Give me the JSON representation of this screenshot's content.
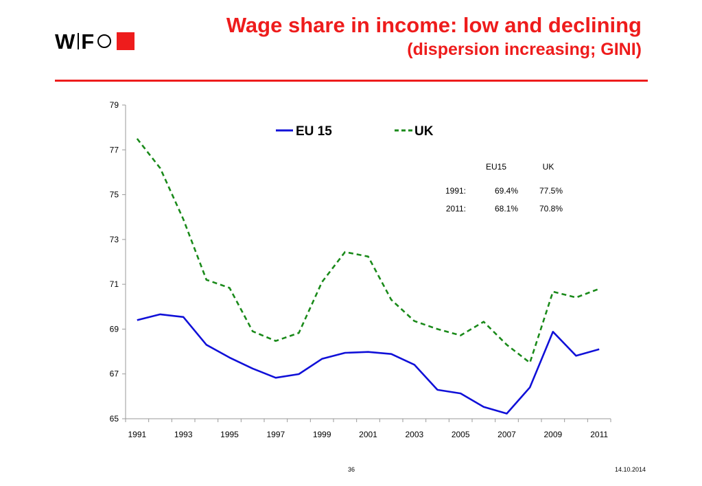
{
  "logo": {
    "text_left": "W",
    "text_right": "F"
  },
  "title": {
    "main": "Wage share in income: low and declining",
    "sub": "(dispersion increasing; GINI)"
  },
  "colors": {
    "accent": "#ee1c1c",
    "eu15": "#1010d8",
    "uk": "#1a8a1a"
  },
  "footer": {
    "page": "36",
    "date": "14.10.2014"
  },
  "chart_data": {
    "type": "line",
    "x": [
      1991,
      1992,
      1993,
      1994,
      1995,
      1996,
      1997,
      1998,
      1999,
      2000,
      2001,
      2002,
      2003,
      2004,
      2005,
      2006,
      2007,
      2008,
      2009,
      2010,
      2011
    ],
    "x_tick_labels": [
      "1991",
      "1993",
      "1995",
      "1997",
      "1999",
      "2001",
      "2003",
      "2005",
      "2007",
      "2009",
      "2011"
    ],
    "y_tick_labels": [
      "65",
      "67",
      "69",
      "71",
      "73",
      "75",
      "77",
      "79"
    ],
    "ylim": [
      65,
      79
    ],
    "xlim": [
      1990.5,
      2011.5
    ],
    "grid": false,
    "legend_position": "top-center",
    "series": [
      {
        "name": "EU 15",
        "style": "solid",
        "color": "#1010d8",
        "values": [
          69.4,
          69.66,
          69.54,
          68.3,
          67.73,
          67.24,
          66.83,
          66.99,
          67.67,
          67.94,
          67.98,
          67.89,
          67.41,
          66.29,
          66.13,
          65.53,
          65.23,
          66.4,
          68.88,
          67.81,
          68.1
        ]
      },
      {
        "name": "UK",
        "style": "dashed",
        "color": "#1a8a1a",
        "values": [
          77.5,
          76.18,
          73.9,
          71.2,
          70.84,
          68.9,
          68.47,
          68.83,
          71.1,
          72.44,
          72.24,
          70.31,
          69.36,
          69.0,
          68.72,
          69.33,
          68.3,
          67.5,
          70.67,
          70.41,
          70.8
        ]
      }
    ],
    "annotation_table": {
      "headers": [
        "",
        "EU15",
        "UK"
      ],
      "rows": [
        [
          "1991:",
          "69.4%",
          "77.5%"
        ],
        [
          "2011:",
          "68.1%",
          "70.8%"
        ]
      ]
    }
  }
}
